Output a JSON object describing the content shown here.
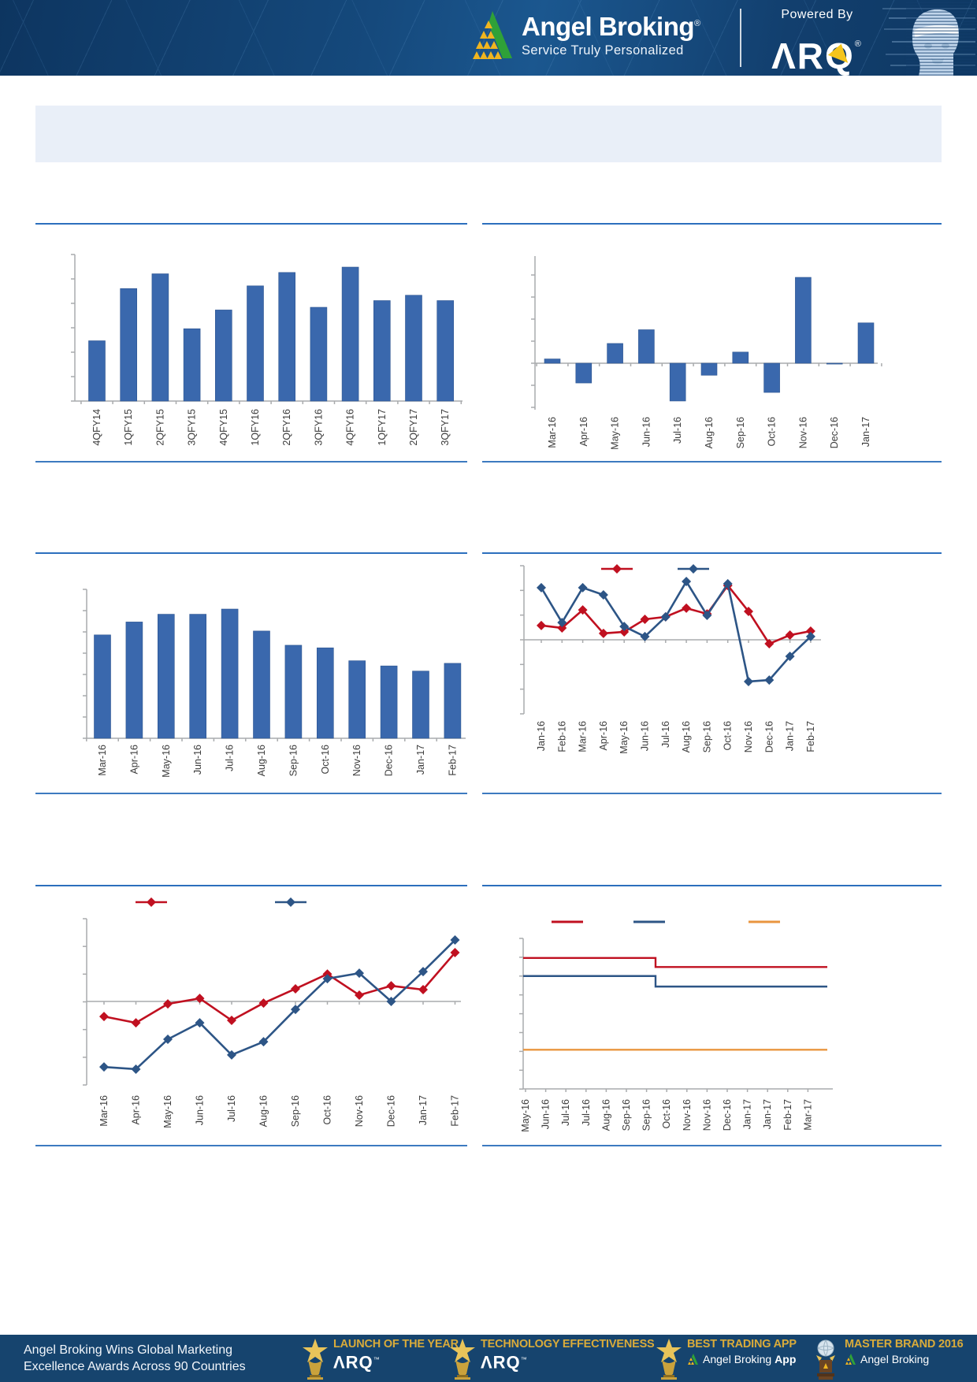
{
  "header": {
    "brand": "Angel Broking",
    "brand_mark": "®",
    "tagline": "Service Truly Personalized",
    "powered_by": "Powered By",
    "arq": "ΛRQ",
    "arq_mark": "®"
  },
  "banner": {
    "text": ""
  },
  "colors": {
    "bar_blue": "#3a68ad",
    "line_red": "#c01020",
    "line_blue": "#2d5586",
    "line_orange": "#e9953f",
    "rule_blue": "#2c6fbd",
    "axis_grey": "#a9abad",
    "label_grey": "#3d3d3d",
    "header_navy": "#15497c",
    "footer_navy": "#16446e",
    "banner_blue": "#e9eff8",
    "gold": "#d9ab3a",
    "brand_yellow": "#f0b51f",
    "brand_green": "#2fa138"
  },
  "chart_data": [
    {
      "type": "bar",
      "title": "",
      "categories": [
        "4QFY14",
        "1QFY15",
        "2QFY15",
        "3QFY15",
        "4QFY15",
        "1QFY16",
        "2QFY16",
        "3QFY16",
        "4QFY16",
        "1QFY17",
        "2QFY17",
        "3QFY17"
      ],
      "values": [
        0.45,
        0.84,
        0.95,
        0.54,
        0.68,
        0.86,
        0.96,
        0.7,
        1.0,
        0.75,
        0.79,
        0.75
      ],
      "units": "relative (y-axis unlabeled, max bar = 1.0)",
      "bar_color": "#3a68ad",
      "grid": false,
      "legend": null
    },
    {
      "type": "bar",
      "title": "",
      "categories": [
        "Mar-16",
        "Apr-16",
        "May-16",
        "Jun-16",
        "Jul-16",
        "Aug-16",
        "Sep-16",
        "Oct-16",
        "Nov-16",
        "Dec-16",
        "Jan-17"
      ],
      "values": [
        0.05,
        -0.23,
        0.23,
        0.39,
        -0.44,
        -0.14,
        0.13,
        -0.34,
        1.0,
        -0.01,
        0.47
      ],
      "units": "relative to zero line (y-axis unlabeled, tallest bar = 1.0)",
      "bar_color": "#3a68ad",
      "grid": false,
      "legend": null
    },
    {
      "type": "bar",
      "title": "",
      "categories": [
        "Mar-16",
        "Apr-16",
        "May-16",
        "Jun-16",
        "Jul-16",
        "Aug-16",
        "Sep-16",
        "Oct-16",
        "Nov-16",
        "Dec-16",
        "Jan-17",
        "Feb-17"
      ],
      "values": [
        0.8,
        0.9,
        0.96,
        0.96,
        1.0,
        0.83,
        0.72,
        0.7,
        0.6,
        0.56,
        0.52,
        0.58
      ],
      "units": "relative (y-axis unlabeled, max bar = 1.0)",
      "bar_color": "#3a68ad",
      "grid": false,
      "legend": null
    },
    {
      "type": "line",
      "title": "",
      "categories": [
        "Jan-16",
        "Feb-16",
        "Mar-16",
        "Apr-16",
        "May-16",
        "Jun-16",
        "Jul-16",
        "Aug-16",
        "Sep-16",
        "Oct-16",
        "Nov-16",
        "Dec-16",
        "Jan-17",
        "Feb-17"
      ],
      "series": [
        {
          "name": "red-series",
          "color": "#c01020",
          "marker": "diamond",
          "values": [
            0.58,
            0.48,
            1.21,
            0.26,
            0.32,
            0.83,
            0.93,
            1.28,
            1.05,
            2.2,
            1.15,
            -0.16,
            0.19,
            0.35
          ]
        },
        {
          "name": "blue-series",
          "color": "#2d5586",
          "marker": "diamond",
          "values": [
            2.11,
            0.7,
            2.11,
            1.82,
            0.54,
            0.13,
            0.93,
            2.36,
            0.99,
            2.27,
            -1.69,
            -1.63,
            -0.67,
            0.13
          ]
        }
      ],
      "units": "y-axis tick intervals relative to zero line (axis unlabeled)",
      "legend_position": "top",
      "legend_labels_visible": false,
      "grid": false
    },
    {
      "type": "line",
      "title": "",
      "categories": [
        "Mar-16",
        "Apr-16",
        "May-16",
        "Jun-16",
        "Jul-16",
        "Aug-16",
        "Sep-16",
        "Oct-16",
        "Nov-16",
        "Dec-16",
        "Jan-17",
        "Feb-17"
      ],
      "series": [
        {
          "name": "red-series",
          "color": "#c01020",
          "marker": "diamond",
          "values": [
            -0.55,
            -0.78,
            -0.09,
            0.11,
            -0.69,
            -0.06,
            0.46,
            1.0,
            0.23,
            0.57,
            0.43,
            1.78
          ]
        },
        {
          "name": "blue-series",
          "color": "#2d5586",
          "marker": "diamond",
          "values": [
            -2.39,
            -2.47,
            -1.38,
            -0.78,
            -1.95,
            -1.47,
            -0.29,
            0.83,
            1.03,
            0.0,
            1.09,
            2.24
          ]
        }
      ],
      "units": "y-axis tick intervals relative to zero line (axis unlabeled)",
      "legend_position": "top",
      "legend_labels_visible": false,
      "grid": false
    },
    {
      "type": "step-line",
      "title": "",
      "categories": [
        "May-16",
        "Jun-16",
        "Jul-16",
        "Jul-16",
        "Aug-16",
        "Sep-16",
        "Sep-16",
        "Oct-16",
        "Nov-16",
        "Nov-16",
        "Dec-16",
        "Jan-17",
        "Jan-17",
        "Feb-17",
        "Mar-17"
      ],
      "series": [
        {
          "name": "red-flat",
          "color": "#c01020",
          "level_before_step": 0.87,
          "level_after_step": 0.81,
          "step_after_category_index": 6
        },
        {
          "name": "blue-flat",
          "color": "#2d5586",
          "level_before_step": 0.75,
          "level_after_step": 0.68,
          "step_after_category_index": 6
        },
        {
          "name": "orange-flat",
          "color": "#e9953f",
          "level_flat": 0.26
        }
      ],
      "units": "fraction of plot height above x-axis (axis unlabeled)",
      "legend_position": "top",
      "legend_labels_visible": false,
      "grid": false
    }
  ],
  "footer": {
    "line1": "Angel Broking Wins Global Marketing",
    "line2": "Excellence Awards Across 90 Countries",
    "badges": [
      {
        "icon": "trophy-star-icon",
        "title": "LAUNCH OF THE YEAR",
        "subtitle": "ΛRQ",
        "subtitle_mark": "™",
        "subtitle_bold": ""
      },
      {
        "icon": "trophy-star-icon",
        "title": "TECHNOLOGY EFFECTIVENESS",
        "subtitle": "ΛRQ",
        "subtitle_mark": "™",
        "subtitle_bold": ""
      },
      {
        "icon": "trophy-star-icon",
        "title": "BEST TRADING APP",
        "subtitle": "Angel Broking",
        "subtitle_mark": "",
        "subtitle_bold": "App"
      },
      {
        "icon": "globe-trophy-icon",
        "title": "MASTER BRAND 2016",
        "subtitle": "Angel Broking",
        "subtitle_mark": "",
        "subtitle_bold": ""
      }
    ]
  }
}
